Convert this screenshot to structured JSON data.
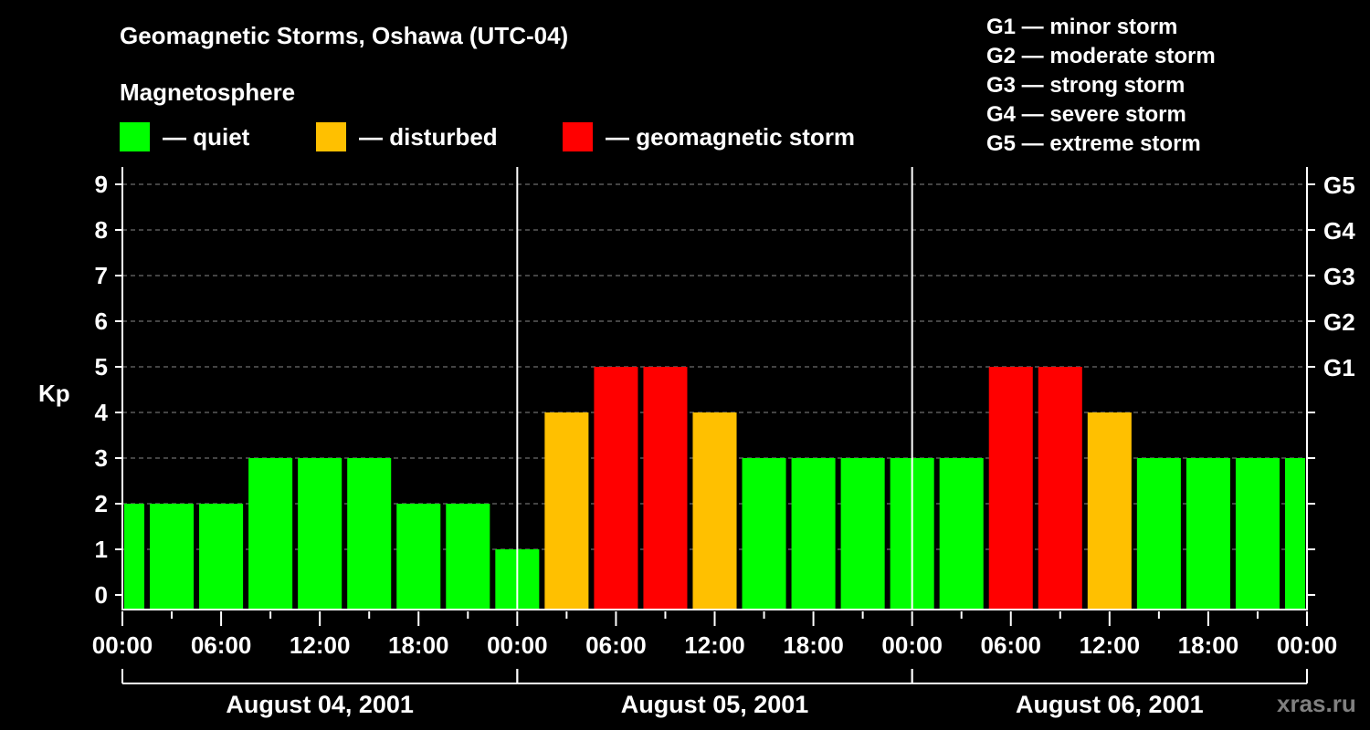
{
  "header": {
    "title": "Geomagnetic Storms, Oshawa (UTC-04)",
    "subtitle": "Magnetosphere"
  },
  "legend": [
    {
      "label": "— quiet",
      "color": "#00ff00"
    },
    {
      "label": "— disturbed",
      "color": "#ffc000"
    },
    {
      "label": "— geomagnetic storm",
      "color": "#ff0000"
    }
  ],
  "storm_scale": [
    "G1 — minor storm",
    "G2 — moderate storm",
    "G3 — strong storm",
    "G4 — severe storm",
    "G5 — extreme storm"
  ],
  "watermark": "xras.ru",
  "chart_data": {
    "type": "bar",
    "title": "Geomagnetic Storms, Oshawa (UTC-04)",
    "subtitle": "Magnetosphere",
    "xlabel": "",
    "ylabel": "Kp",
    "ylim": [
      0,
      9
    ],
    "y_ticks": [
      0,
      1,
      2,
      3,
      4,
      5,
      6,
      7,
      8,
      9
    ],
    "right_axis_ticks": [
      {
        "kp": 5,
        "label": "G1"
      },
      {
        "kp": 6,
        "label": "G2"
      },
      {
        "kp": 7,
        "label": "G3"
      },
      {
        "kp": 8,
        "label": "G4"
      },
      {
        "kp": 9,
        "label": "G5"
      }
    ],
    "x_tick_labels": [
      "00:00",
      "06:00",
      "12:00",
      "18:00",
      "00:00",
      "06:00",
      "12:00",
      "18:00",
      "00:00",
      "06:00",
      "12:00",
      "18:00",
      "00:00"
    ],
    "days": [
      "August 04, 2001",
      "August 05, 2001",
      "August 06, 2001"
    ],
    "grid": "dashed horizontal at each Kp level",
    "bar_interval_hours": 3,
    "bar_start_hours": [
      -1.5,
      1.5,
      4.5,
      7.5,
      10.5,
      13.5,
      16.5,
      19.5,
      22.5,
      25.5,
      28.5,
      31.5,
      34.5,
      37.5,
      40.5,
      43.5,
      46.5,
      49.5,
      52.5,
      55.5,
      58.5,
      61.5,
      64.5,
      67.5,
      70.5
    ],
    "values": [
      2,
      2,
      2,
      3,
      3,
      3,
      2,
      2,
      1,
      4,
      5,
      5,
      4,
      3,
      3,
      3,
      3,
      3,
      5,
      5,
      4,
      3,
      3,
      3,
      3
    ],
    "categories_legend": {
      "quiet": "#00ff00",
      "disturbed": "#ffc000",
      "geomagnetic storm": "#ff0000"
    },
    "color_rule": "Kp<=3 quiet (green), Kp=4 disturbed (orange), Kp>=5 storm (red)"
  }
}
